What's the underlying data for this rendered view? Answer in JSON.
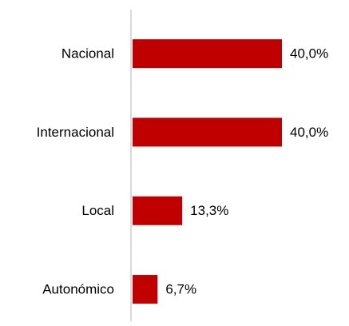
{
  "chart_data": {
    "type": "bar",
    "orientation": "horizontal",
    "categories": [
      "Nacional",
      "Internacional",
      "Local",
      "Autonómico"
    ],
    "values": [
      40.0,
      40.0,
      13.3,
      6.7
    ],
    "value_labels": [
      "40,0%",
      "40,0%",
      "13,3%",
      "6,7%"
    ],
    "color": "#c00000"
  }
}
